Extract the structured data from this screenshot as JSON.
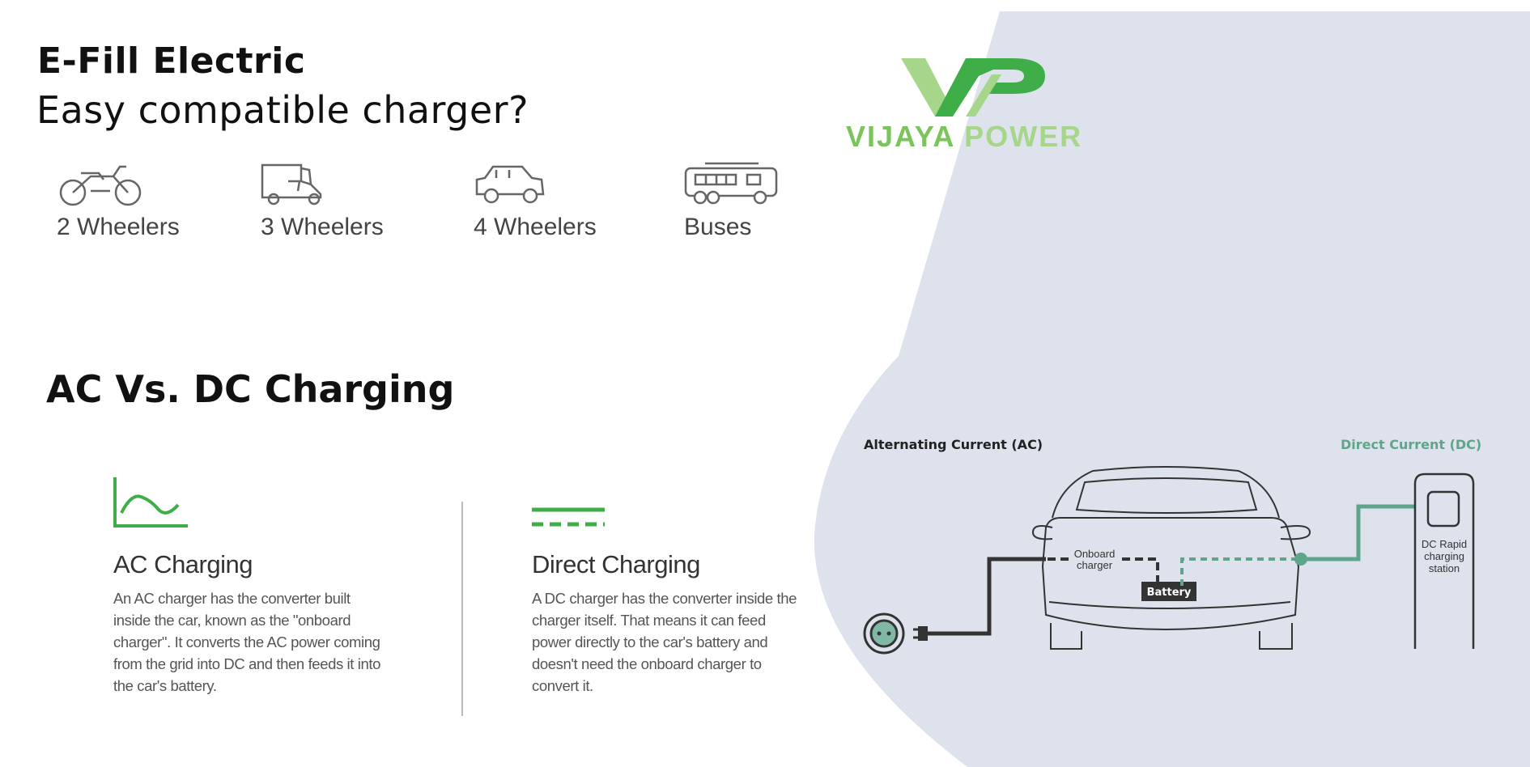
{
  "header": {
    "title": "E-Fill Electric",
    "subtitle": "Easy compatible charger?"
  },
  "vehicles": [
    {
      "label": "2 Wheelers",
      "icon": "motorcycle-icon"
    },
    {
      "label": "3 Wheelers",
      "icon": "auto-rickshaw-icon"
    },
    {
      "label": "4 Wheelers",
      "icon": "car-icon"
    },
    {
      "label": "Buses",
      "icon": "bus-icon"
    }
  ],
  "logo": {
    "word1": "VIJAYA",
    "word2": "POWER",
    "colors": {
      "dark": "#3fae49",
      "light": "#a5d68a"
    }
  },
  "comparison": {
    "title_bold": "AC Vs. DC",
    "title_rest": "Charging",
    "ac": {
      "icon": "ac-wave-icon",
      "heading": "AC Charging",
      "lines": [
        "An AC charger has the converter  built",
        "inside the car, known as the \"onboard",
        "charger\". It converts the AC power coming",
        "from the grid into DC and then feeds it into",
        "the car's battery."
      ]
    },
    "dc": {
      "icon": "dc-lines-icon",
      "heading": "Direct Charging",
      "lines": [
        "A DC charger has the converter inside the",
        "charger itself. That means it can feed",
        "power directly to the car's battery and",
        "doesn't need the onboard charger to",
        "convert it."
      ]
    }
  },
  "diagram": {
    "ac_label": "Alternating Current (AC)",
    "dc_label": "Direct Current (DC)",
    "onboard_line1": "Onboard",
    "onboard_line2": "charger",
    "battery": "Battery",
    "station_line1": "DC Rapid",
    "station_line2": "charging",
    "station_line3": "station",
    "colors": {
      "ac": "#333333",
      "dc": "#5fa58a",
      "panel": "#dde2ec"
    }
  }
}
